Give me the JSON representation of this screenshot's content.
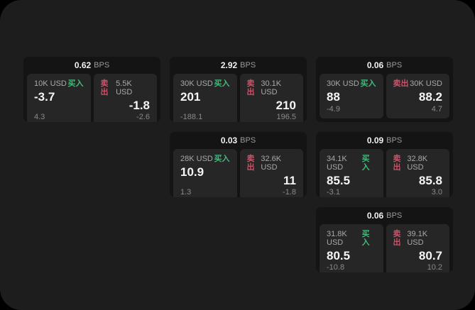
{
  "colors": {
    "canvas_bg": "#000000",
    "page_bg": "#1d1d1d",
    "card_bg": "#141414",
    "tile_bg": "#262626",
    "buy_green": "#45b97c",
    "sell_red": "#cd5168",
    "value_white": "#f5f5f5",
    "label_gray": "#a9a9a9",
    "delta_gray": "#8a8a8a"
  },
  "unit_label": "BPS",
  "cards": [
    {
      "bps": "0.62",
      "unit": "BPS",
      "buy": {
        "size": "10K USD",
        "tag": "买入",
        "value": "-3.7",
        "delta": "4.3"
      },
      "sell": {
        "tag": "卖出",
        "size": "5.5K USD",
        "value": "-1.8",
        "delta": "-2.6"
      }
    },
    {
      "bps": "2.92",
      "unit": "BPS",
      "buy": {
        "size": "30K USD",
        "tag": "买入",
        "value": "201",
        "delta": "-188.1"
      },
      "sell": {
        "tag": "卖出",
        "size": "30.1K USD",
        "value": "210",
        "delta": "196.5"
      }
    },
    {
      "bps": "0.06",
      "unit": "BPS",
      "buy": {
        "size": "30K USD",
        "tag": "买入",
        "value": "88",
        "delta": "-4.9"
      },
      "sell": {
        "tag": "卖出",
        "size": "30K USD",
        "value": "88.2",
        "delta": "4.7"
      }
    },
    {
      "bps": "0.03",
      "unit": "BPS",
      "buy": {
        "size": "28K USD",
        "tag": "买入",
        "value": "10.9",
        "delta": "1.3"
      },
      "sell": {
        "tag": "卖出",
        "size": "32.6K USD",
        "value": "11",
        "delta": "-1.8"
      }
    },
    {
      "bps": "0.09",
      "unit": "BPS",
      "buy": {
        "size": "34.1K USD",
        "tag": "买入",
        "value": "85.5",
        "delta": "-3.1"
      },
      "sell": {
        "tag": "卖出",
        "size": "32.8K USD",
        "value": "85.8",
        "delta": "3.0"
      }
    },
    {
      "bps": "0.06",
      "unit": "BPS",
      "buy": {
        "size": "31.8K USD",
        "tag": "买入",
        "value": "80.5",
        "delta": "-10.8"
      },
      "sell": {
        "tag": "卖出",
        "size": "39.1K USD",
        "value": "80.7",
        "delta": "10.2"
      }
    }
  ]
}
